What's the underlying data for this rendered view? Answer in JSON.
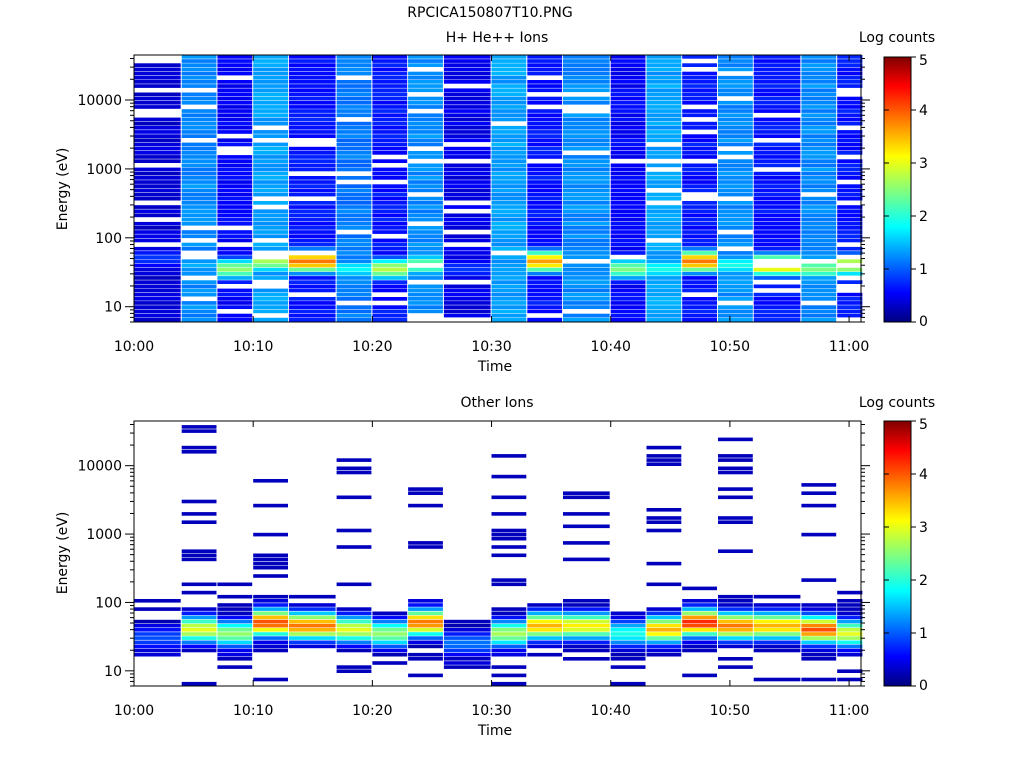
{
  "figure_title": "RPCICA150807T10.PNG",
  "chart_data": [
    {
      "type": "heatmap",
      "title": "H+ He++ Ions",
      "xlabel": "Time",
      "ylabel": "Energy (eV)",
      "y_scale": "log",
      "x_ticks": [
        "10:00",
        "10:10",
        "10:20",
        "10:30",
        "10:40",
        "10:50",
        "11:00"
      ],
      "y_ticks": [
        "10",
        "100",
        "1000",
        "10000"
      ],
      "xlim": [
        "10:00",
        "11:01"
      ],
      "ylim": [
        6,
        45000
      ],
      "colorbar_label": "Log counts",
      "colorbar_ticks": [
        "0",
        "1",
        "2",
        "3",
        "4",
        "5"
      ],
      "color_range": [
        0,
        5
      ],
      "time_bins": [
        "10:00",
        "10:04",
        "10:07",
        "10:10",
        "10:13",
        "10:17",
        "10:20",
        "10:23",
        "10:26",
        "10:30",
        "10:33",
        "10:36",
        "10:40",
        "10:43",
        "10:46",
        "10:49",
        "10:52",
        "10:56",
        "10:59"
      ],
      "peak_log_counts": [
        0.9,
        1.5,
        2.6,
        2.7,
        3.8,
        1.9,
        2.8,
        2.5,
        0.9,
        1.4,
        3.6,
        1.3,
        2.5,
        2.0,
        3.8,
        2.0,
        3.5,
        2.5,
        3.0
      ],
      "peak_energy_ev": [
        50,
        40,
        35,
        45,
        45,
        35,
        35,
        40,
        35,
        30,
        45,
        30,
        35,
        35,
        45,
        40,
        40,
        35,
        40
      ],
      "background_log_counts": [
        0.3,
        1.2,
        0.5,
        1.3,
        0.6,
        1.1,
        0.6,
        1.2,
        0.4,
        1.3,
        0.6,
        1.2,
        0.5,
        1.3,
        0.6,
        1.2,
        0.6,
        1.2,
        0.6
      ]
    },
    {
      "type": "heatmap",
      "title": "Other Ions",
      "xlabel": "Time",
      "ylabel": "Energy (eV)",
      "y_scale": "log",
      "x_ticks": [
        "10:00",
        "10:10",
        "10:20",
        "10:30",
        "10:40",
        "10:50",
        "11:00"
      ],
      "y_ticks": [
        "10",
        "100",
        "1000",
        "10000"
      ],
      "xlim": [
        "10:00",
        "11:01"
      ],
      "ylim": [
        6,
        45000
      ],
      "colorbar_label": "Log counts",
      "colorbar_ticks": [
        "0",
        "1",
        "2",
        "3",
        "4",
        "5"
      ],
      "color_range": [
        0,
        5
      ],
      "time_bins": [
        "10:00",
        "10:04",
        "10:07",
        "10:10",
        "10:13",
        "10:17",
        "10:20",
        "10:23",
        "10:26",
        "10:30",
        "10:33",
        "10:36",
        "10:40",
        "10:43",
        "10:46",
        "10:49",
        "10:52",
        "10:56",
        "10:59"
      ],
      "peak_log_counts": [
        1.0,
        3.0,
        2.6,
        4.0,
        3.8,
        3.0,
        2.6,
        3.8,
        1.2,
        2.7,
        3.5,
        3.2,
        2.0,
        3.5,
        4.2,
        3.8,
        3.5,
        4.0,
        3.0
      ],
      "peak_energy_ev": [
        30,
        40,
        35,
        50,
        45,
        40,
        35,
        50,
        25,
        35,
        45,
        45,
        35,
        40,
        50,
        45,
        45,
        40,
        35
      ],
      "sparse_line_max_energy_ev": [
        140,
        38000,
        190,
        7500,
        170,
        13500,
        190,
        5000,
        190,
        18000,
        190,
        18000,
        210,
        34000,
        190,
        38000,
        180,
        25000,
        210
      ]
    }
  ]
}
